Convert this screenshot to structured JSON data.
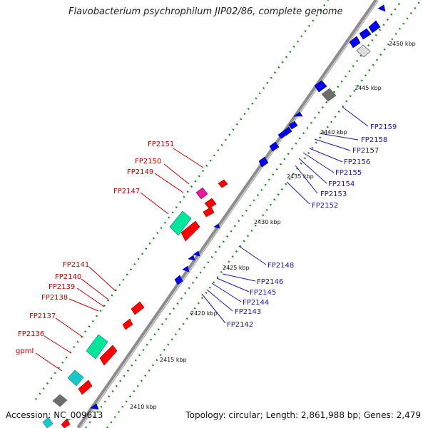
{
  "header": {
    "title": "Flavobacterium psychrophilum JIP02/86, complete genome"
  },
  "footer": {
    "accession": "Accession: NC_009613",
    "summary": "Topology: circular; Length: 2,861,988 bp; Genes: 2,479"
  },
  "scale_labels": [
    "2410 kbp",
    "2415 kbp",
    "2420 kbp",
    "2425 kbp",
    "2430 kbp",
    "2435 kbp",
    "2440 kbp",
    "2445 kbp",
    "2450 kbp"
  ],
  "genes_left": [
    "FP2151",
    "FP2150",
    "FP2149",
    "FP2147",
    "FP2141",
    "FP2140",
    "FP2139",
    "FP2138",
    "FP2137",
    "FP2136",
    "gpmI"
  ],
  "genes_right": [
    "FP2159",
    "FP2158",
    "FP2157",
    "FP2156",
    "FP2155",
    "FP2154",
    "FP2153",
    "FP2152",
    "FP2148",
    "FP2146",
    "FP2145",
    "FP2144",
    "FP2143",
    "FP2142"
  ],
  "colors": {
    "backbone": "#8c8c8c",
    "forward_cds": "#ff0000",
    "reverse_cds": "#0000ee",
    "rna": "#00e69a",
    "magenta": "#e6199a",
    "gc_dots": "#1a8c1a"
  }
}
